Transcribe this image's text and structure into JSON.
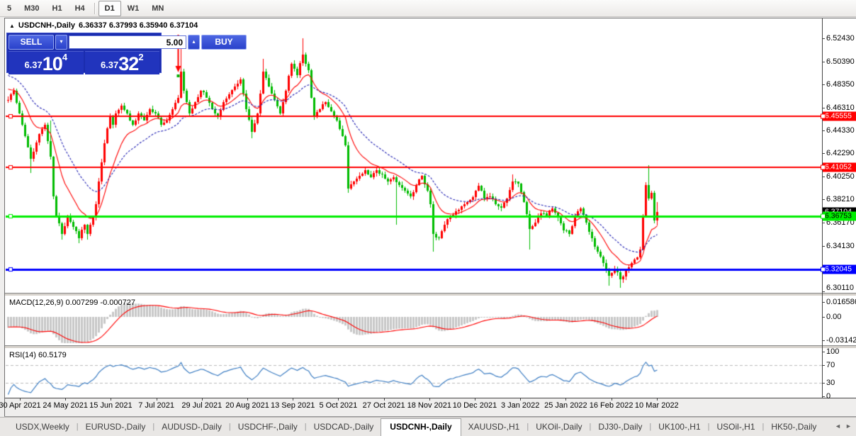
{
  "toolbar": {
    "timeframes": [
      {
        "label": "5"
      },
      {
        "label": "M30"
      },
      {
        "label": "H1"
      },
      {
        "label": "H4"
      },
      {
        "separator": true
      },
      {
        "label": "D1",
        "active": true
      },
      {
        "label": "W1"
      },
      {
        "label": "MN"
      }
    ]
  },
  "chart": {
    "title": {
      "collapse_icon": "▲",
      "symbol": "USDCNH-,Daily",
      "ohlc": "6.36337 6.37993 6.35940 6.37104"
    },
    "trade_panel": {
      "sell_label": "SELL",
      "buy_label": "BUY",
      "volume": "5.00",
      "spin_down_icon": "▾",
      "spin_up_icon": "▴",
      "sell_price_small": "6.37",
      "sell_price_big": "10",
      "sell_price_sup": "4",
      "buy_price_small": "6.37",
      "buy_price_big": "32",
      "buy_price_sup": "2"
    },
    "price_axis": {
      "ticks": [
        {
          "label": "6.52430",
          "price": 6.5243
        },
        {
          "label": "6.50390",
          "price": 6.5039
        },
        {
          "label": "6.48350",
          "price": 6.4835
        },
        {
          "label": "6.46310",
          "price": 6.4631
        },
        {
          "label": "6.44330",
          "price": 6.4433
        },
        {
          "label": "6.42290",
          "price": 6.4229
        },
        {
          "label": "6.40250",
          "price": 6.4025
        },
        {
          "label": "6.38210",
          "price": 6.3821
        },
        {
          "label": "6.36170",
          "price": 6.3617
        },
        {
          "label": "6.34130",
          "price": 6.3413
        },
        {
          "label": "6.30110",
          "price": 6.3011
        }
      ],
      "current_price": {
        "label": "6.37104",
        "price": 6.37104,
        "bg": "#000000",
        "text_color": "#ffffff"
      }
    },
    "levels": [
      {
        "label": "6.45555",
        "price": 6.45555,
        "color": "#ff0000",
        "text_color": "#ffffff",
        "line_width": 2
      },
      {
        "label": "6.41052",
        "price": 6.41052,
        "color": "#ff0000",
        "text_color": "#ffffff",
        "line_width": 2
      },
      {
        "label": "6.32045",
        "price": 6.32045,
        "color": "#0000ff",
        "text_color": "#ffffff",
        "line_width": 3
      },
      {
        "label": "6.36753",
        "price": 6.36753,
        "color": "#00ee00",
        "text_color": "#000000",
        "line_width": 3
      }
    ],
    "marker": {
      "name": "sell-arrow-marker",
      "index": 60,
      "color": "#ff0000",
      "dot_color": "#00b000"
    },
    "chart_data": {
      "type": "candlestick",
      "symbol": "USDCNH",
      "period": "Daily",
      "candle_count": 230,
      "up_color": "#ff0000",
      "down_color": "#00bb00",
      "ma_fast": {
        "period": 12,
        "color": "#ff0000"
      },
      "ma_slow": {
        "period": 26,
        "color": "#2121b4"
      },
      "wiggle": 0.0016,
      "wick": 0.0028,
      "pre_trend": {
        "bars": 30,
        "from": 6.531
      },
      "waypoints": [
        [
          0,
          6.47
        ],
        [
          2,
          6.478
        ],
        [
          5,
          6.448
        ],
        [
          8,
          6.418
        ],
        [
          11,
          6.44
        ],
        [
          13,
          6.448
        ],
        [
          15,
          6.42
        ],
        [
          16,
          6.385
        ],
        [
          17,
          6.368
        ],
        [
          19,
          6.352
        ],
        [
          21,
          6.368
        ],
        [
          23,
          6.358
        ],
        [
          25,
          6.348
        ],
        [
          27,
          6.36
        ],
        [
          28,
          6.352
        ],
        [
          30,
          6.366
        ],
        [
          31,
          6.378
        ],
        [
          32,
          6.398
        ],
        [
          33,
          6.415
        ],
        [
          34,
          6.432
        ],
        [
          35,
          6.445
        ],
        [
          36,
          6.455
        ],
        [
          37,
          6.448
        ],
        [
          38,
          6.458
        ],
        [
          40,
          6.465
        ],
        [
          42,
          6.458
        ],
        [
          44,
          6.448
        ],
        [
          46,
          6.458
        ],
        [
          48,
          6.452
        ],
        [
          50,
          6.462
        ],
        [
          52,
          6.458
        ],
        [
          54,
          6.448
        ],
        [
          56,
          6.452
        ],
        [
          58,
          6.462
        ],
        [
          60,
          6.472
        ],
        [
          61,
          6.495
        ],
        [
          62,
          6.478
        ],
        [
          63,
          6.468
        ],
        [
          64,
          6.458
        ],
        [
          66,
          6.468
        ],
        [
          68,
          6.478
        ],
        [
          70,
          6.472
        ],
        [
          72,
          6.462
        ],
        [
          74,
          6.455
        ],
        [
          76,
          6.468
        ],
        [
          78,
          6.475
        ],
        [
          80,
          6.482
        ],
        [
          82,
          6.488
        ],
        [
          84,
          6.462
        ],
        [
          86,
          6.442
        ],
        [
          88,
          6.458
        ],
        [
          90,
          6.495
        ],
        [
          92,
          6.482
        ],
        [
          94,
          6.47
        ],
        [
          96,
          6.458
        ],
        [
          98,
          6.478
        ],
        [
          100,
          6.502
        ],
        [
          102,
          6.492
        ],
        [
          104,
          6.51
        ],
        [
          106,
          6.496
        ],
        [
          107,
          6.472
        ],
        [
          108,
          6.455
        ],
        [
          110,
          6.462
        ],
        [
          112,
          6.468
        ],
        [
          114,
          6.46
        ],
        [
          116,
          6.452
        ],
        [
          118,
          6.438
        ],
        [
          119,
          6.43
        ],
        [
          120,
          6.392
        ],
        [
          122,
          6.398
        ],
        [
          124,
          6.403
        ],
        [
          126,
          6.408
        ],
        [
          128,
          6.402
        ],
        [
          130,
          6.408
        ],
        [
          132,
          6.404
        ],
        [
          134,
          6.398
        ],
        [
          136,
          6.402
        ],
        [
          138,
          6.395
        ],
        [
          140,
          6.39
        ],
        [
          142,
          6.385
        ],
        [
          144,
          6.395
        ],
        [
          146,
          6.403
        ],
        [
          148,
          6.39
        ],
        [
          149,
          6.378
        ],
        [
          150,
          6.352
        ],
        [
          152,
          6.348
        ],
        [
          154,
          6.36
        ],
        [
          156,
          6.368
        ],
        [
          158,
          6.372
        ],
        [
          160,
          6.376
        ],
        [
          162,
          6.38
        ],
        [
          164,
          6.384
        ],
        [
          166,
          6.394
        ],
        [
          168,
          6.383
        ],
        [
          170,
          6.385
        ],
        [
          172,
          6.378
        ],
        [
          174,
          6.375
        ],
        [
          176,
          6.383
        ],
        [
          178,
          6.398
        ],
        [
          180,
          6.396
        ],
        [
          182,
          6.38
        ],
        [
          184,
          6.356
        ],
        [
          186,
          6.362
        ],
        [
          188,
          6.37
        ],
        [
          190,
          6.368
        ],
        [
          192,
          6.374
        ],
        [
          194,
          6.366
        ],
        [
          196,
          6.355
        ],
        [
          198,
          6.352
        ],
        [
          200,
          6.368
        ],
        [
          202,
          6.374
        ],
        [
          204,
          6.362
        ],
        [
          206,
          6.348
        ],
        [
          208,
          6.336
        ],
        [
          210,
          6.326
        ],
        [
          212,
          6.315
        ],
        [
          214,
          6.321
        ],
        [
          216,
          6.312
        ],
        [
          218,
          6.319
        ],
        [
          220,
          6.326
        ],
        [
          222,
          6.331
        ],
        [
          223,
          6.338
        ],
        [
          224,
          6.368
        ],
        [
          225,
          6.395
        ],
        [
          226,
          6.383
        ],
        [
          227,
          6.388
        ],
        [
          228,
          6.3634
        ],
        [
          229,
          6.37104
        ]
      ],
      "extremes": {
        "8": {
          "low": 6.4055
        },
        "15": {
          "high": 6.452
        },
        "19": {
          "low": 6.347
        },
        "25": {
          "low": 6.3438
        },
        "28": {
          "low": 6.3465
        },
        "61": {
          "high": 6.515
        },
        "86": {
          "low": 6.436
        },
        "90": {
          "high": 6.506
        },
        "104": {
          "high": 6.5243
        },
        "120": {
          "low": 6.388
        },
        "137": {
          "low": 6.36
        },
        "150": {
          "low": 6.336
        },
        "178": {
          "high": 6.404
        },
        "184": {
          "low": 6.338
        },
        "212": {
          "low": 6.306
        },
        "216": {
          "low": 6.3042
        },
        "226": {
          "high": 6.4125
        },
        "229": {
          "open": 6.36337,
          "high": 6.37993,
          "low": 6.3594,
          "close": 6.37104
        }
      }
    }
  },
  "macd_panel": {
    "label": "MACD(12,26,9) 0.007299 -0.000727",
    "histogram_color": "#c8c8c8",
    "signal_color": "#ff0000",
    "axis": [
      {
        "label": "0.016586",
        "value": 0.016586
      },
      {
        "label": "0.00",
        "value": 0
      },
      {
        "label": "-0.03142",
        "value": -0.03142
      }
    ]
  },
  "rsi_panel": {
    "label": "RSI(14) 60.5179",
    "line_color": "#3f7fc4",
    "level_color": "#bcbcbc",
    "levels": [
      70,
      30
    ],
    "axis": [
      {
        "label": "100",
        "value": 100
      },
      {
        "label": "70",
        "value": 70
      },
      {
        "label": "30",
        "value": 30
      },
      {
        "label": "0",
        "value": 0
      }
    ]
  },
  "date_axis": {
    "labels": [
      "30 Apr 2021",
      "24 May 2021",
      "15 Jun 2021",
      "7 Jul 2021",
      "29 Jul 2021",
      "20 Aug 2021",
      "13 Sep 2021",
      "5 Oct 2021",
      "27 Oct 2021",
      "18 Nov 2021",
      "10 Dec 2021",
      "3 Jan 2022",
      "25 Jan 2022",
      "16 Feb 2022",
      "10 Mar 2022"
    ]
  },
  "tabs": {
    "items": [
      "USDX,Weekly",
      "EURUSD-,Daily",
      "AUDUSD-,Daily",
      "USDCHF-,Daily",
      "USDCAD-,Daily",
      "USDCNH-,Daily",
      "XAUUSD-,H1",
      "UKOil-,Daily",
      "DJ30-,Daily",
      "UK100-,H1",
      "USOil-,H1",
      "HK50-,Daily"
    ],
    "active_index": 5,
    "prev_icon": "◄",
    "next_icon": "►"
  }
}
